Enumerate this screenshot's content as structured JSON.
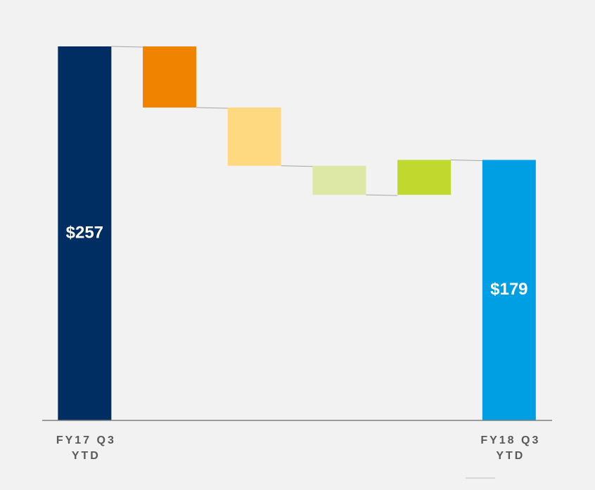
{
  "chart_data": {
    "type": "waterfall",
    "categories": [
      "FY17 Q3 YTD",
      null,
      null,
      null,
      null,
      "FY18 Q3 YTD"
    ],
    "values": [
      257,
      -42,
      -40,
      -20,
      24,
      179
    ],
    "value_labels": [
      "$257",
      null,
      null,
      null,
      null,
      "$179"
    ],
    "totals": [
      true,
      false,
      false,
      false,
      false,
      true
    ],
    "colors": [
      "#002d62",
      "#f08300",
      "#ffd97f",
      "#dde8a6",
      "#c1d82f",
      "#009fe3"
    ]
  }
}
